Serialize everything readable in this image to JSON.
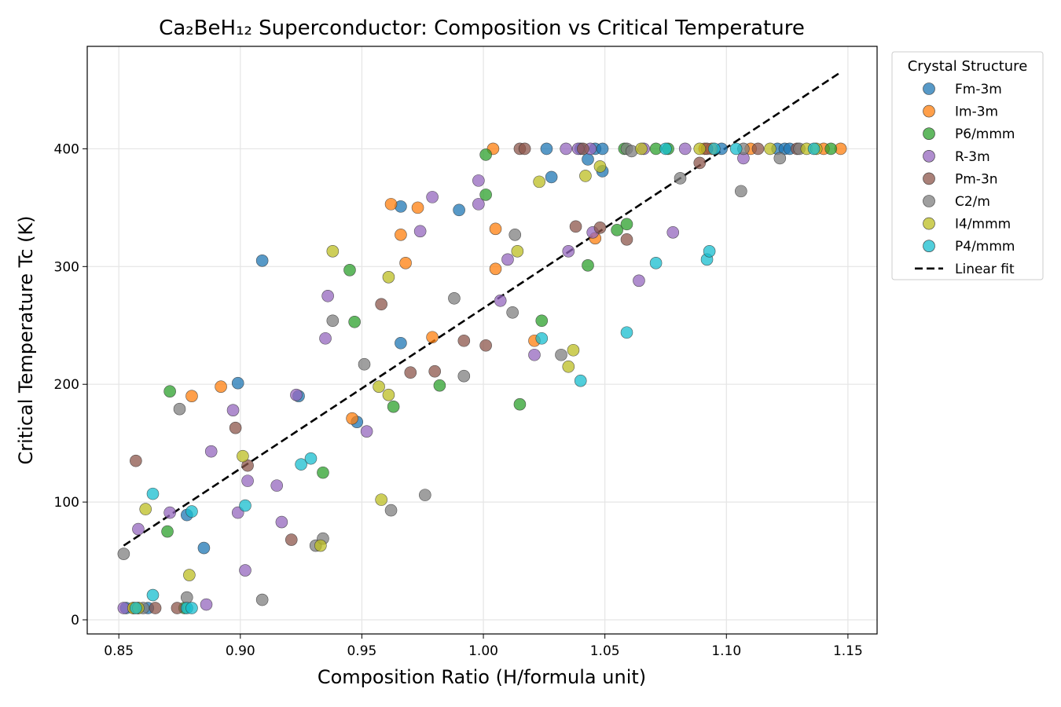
{
  "chart_data": {
    "type": "scatter",
    "title": "Ca₂BeH₁₂ Superconductor: Composition vs Critical Temperature",
    "xlabel": "Composition Ratio (H/formula unit)",
    "ylabel": "Critical Temperature Tc (K)",
    "xlim": [
      0.837,
      1.162
    ],
    "ylim": [
      -12,
      487
    ],
    "xticks": [
      0.85,
      0.9,
      0.95,
      1.0,
      1.05,
      1.1,
      1.15
    ],
    "xtick_labels": [
      "0.85",
      "0.90",
      "0.95",
      "1.00",
      "1.05",
      "1.10",
      "1.15"
    ],
    "yticks": [
      0,
      100,
      200,
      300,
      400
    ],
    "ytick_labels": [
      "0",
      "100",
      "200",
      "300",
      "400"
    ],
    "grid": true,
    "legend": {
      "title": "Crystal Structure",
      "placement": "outside-top-right"
    },
    "series": [
      {
        "name": "Fm-3m",
        "color": "#1f77b4",
        "points": [
          [
            0.909,
            305
          ],
          [
            0.899,
            201
          ],
          [
            0.924,
            190
          ],
          [
            0.948,
            168
          ],
          [
            0.885,
            61
          ],
          [
            0.878,
            89
          ],
          [
            0.966,
            351
          ],
          [
            0.966,
            235
          ],
          [
            0.99,
            348
          ],
          [
            1.028,
            376
          ],
          [
            1.049,
            381
          ],
          [
            1.043,
            391
          ],
          [
            1.026,
            400
          ],
          [
            1.04,
            400
          ],
          [
            1.046,
            400
          ],
          [
            1.049,
            400
          ],
          [
            1.098,
            400
          ],
          [
            1.121,
            400
          ],
          [
            1.124,
            400
          ],
          [
            1.126,
            400
          ],
          [
            0.853,
            10
          ],
          [
            0.858,
            10
          ],
          [
            0.862,
            10
          ]
        ]
      },
      {
        "name": "Im-3m",
        "color": "#ff7f0e",
        "points": [
          [
            1.004,
            400
          ],
          [
            0.892,
            198
          ],
          [
            0.88,
            190
          ],
          [
            0.946,
            171
          ],
          [
            0.962,
            353
          ],
          [
            0.973,
            350
          ],
          [
            0.966,
            327
          ],
          [
            0.968,
            303
          ],
          [
            0.979,
            240
          ],
          [
            1.005,
            332
          ],
          [
            1.005,
            298
          ],
          [
            1.021,
            237
          ],
          [
            1.046,
            324
          ],
          [
            1.147,
            400
          ],
          [
            1.14,
            400
          ],
          [
            1.091,
            400
          ],
          [
            1.094,
            400
          ],
          [
            1.11,
            400
          ],
          [
            0.856,
            10
          ]
        ]
      },
      {
        "name": "P6/mmm",
        "color": "#2ca02c",
        "points": [
          [
            0.871,
            194
          ],
          [
            0.87,
            75
          ],
          [
            0.934,
            125
          ],
          [
            0.945,
            297
          ],
          [
            0.947,
            253
          ],
          [
            0.963,
            181
          ],
          [
            0.982,
            199
          ],
          [
            1.001,
            395
          ],
          [
            1.001,
            361
          ],
          [
            1.015,
            183
          ],
          [
            1.024,
            254
          ],
          [
            1.043,
            301
          ],
          [
            1.055,
            331
          ],
          [
            1.059,
            336
          ],
          [
            1.058,
            400
          ],
          [
            1.071,
            400
          ],
          [
            1.076,
            400
          ],
          [
            1.143,
            400
          ],
          [
            0.877,
            10
          ]
        ]
      },
      {
        "name": "R-3m",
        "color": "#9467bd",
        "points": [
          [
            0.871,
            91
          ],
          [
            0.858,
            77
          ],
          [
            0.888,
            143
          ],
          [
            0.897,
            178
          ],
          [
            0.899,
            91
          ],
          [
            0.903,
            118
          ],
          [
            0.902,
            42
          ],
          [
            0.886,
            13
          ],
          [
            0.915,
            114
          ],
          [
            0.917,
            83
          ],
          [
            0.923,
            191
          ],
          [
            0.935,
            239
          ],
          [
            0.936,
            275
          ],
          [
            0.952,
            160
          ],
          [
            0.974,
            330
          ],
          [
            0.979,
            359
          ],
          [
            0.998,
            373
          ],
          [
            0.998,
            353
          ],
          [
            1.007,
            271
          ],
          [
            1.01,
            306
          ],
          [
            1.021,
            225
          ],
          [
            1.035,
            313
          ],
          [
            1.045,
            329
          ],
          [
            1.064,
            288
          ],
          [
            1.078,
            329
          ],
          [
            1.107,
            392
          ],
          [
            1.034,
            400
          ],
          [
            1.039,
            400
          ],
          [
            1.044,
            400
          ],
          [
            1.066,
            400
          ],
          [
            1.083,
            400
          ],
          [
            0.852,
            10
          ]
        ]
      },
      {
        "name": "Pm-3n",
        "color": "#8c564b",
        "points": [
          [
            0.857,
            135
          ],
          [
            0.898,
            163
          ],
          [
            0.903,
            131
          ],
          [
            0.921,
            68
          ],
          [
            0.958,
            268
          ],
          [
            0.97,
            210
          ],
          [
            0.98,
            211
          ],
          [
            0.992,
            237
          ],
          [
            1.001,
            233
          ],
          [
            1.038,
            334
          ],
          [
            1.048,
            333
          ],
          [
            1.059,
            323
          ],
          [
            1.089,
            388
          ],
          [
            1.015,
            400
          ],
          [
            1.017,
            400
          ],
          [
            1.041,
            400
          ],
          [
            1.092,
            400
          ],
          [
            1.113,
            400
          ],
          [
            1.129,
            400
          ],
          [
            0.865,
            10
          ],
          [
            0.874,
            10
          ]
        ]
      },
      {
        "name": "C2/m",
        "color": "#7f7f7f",
        "points": [
          [
            0.852,
            56
          ],
          [
            0.875,
            179
          ],
          [
            0.878,
            19
          ],
          [
            0.909,
            17
          ],
          [
            0.931,
            63
          ],
          [
            0.934,
            69
          ],
          [
            0.938,
            254
          ],
          [
            0.951,
            217
          ],
          [
            0.962,
            93
          ],
          [
            0.976,
            106
          ],
          [
            0.988,
            273
          ],
          [
            0.992,
            207
          ],
          [
            1.013,
            327
          ],
          [
            1.012,
            261
          ],
          [
            1.032,
            225
          ],
          [
            1.081,
            375
          ],
          [
            1.106,
            364
          ],
          [
            1.122,
            392
          ],
          [
            1.059,
            400
          ],
          [
            1.061,
            398
          ],
          [
            1.107,
            400
          ],
          [
            1.13,
            400
          ],
          [
            0.86,
            10
          ]
        ]
      },
      {
        "name": "I4/mmm",
        "color": "#bcbd22",
        "points": [
          [
            0.861,
            94
          ],
          [
            0.879,
            38
          ],
          [
            0.901,
            139
          ],
          [
            0.933,
            63
          ],
          [
            0.938,
            313
          ],
          [
            0.958,
            102
          ],
          [
            0.957,
            198
          ],
          [
            0.961,
            191
          ],
          [
            0.961,
            291
          ],
          [
            1.014,
            313
          ],
          [
            1.023,
            372
          ],
          [
            1.035,
            215
          ],
          [
            1.037,
            229
          ],
          [
            1.042,
            377
          ],
          [
            1.048,
            385
          ],
          [
            1.065,
            400
          ],
          [
            1.089,
            400
          ],
          [
            1.118,
            400
          ],
          [
            1.133,
            400
          ],
          [
            1.137,
            400
          ],
          [
            0.856,
            10
          ],
          [
            0.858,
            10
          ]
        ]
      },
      {
        "name": "P4/mmm",
        "color": "#17becf",
        "points": [
          [
            0.864,
            107
          ],
          [
            0.864,
            21
          ],
          [
            0.88,
            92
          ],
          [
            0.902,
            97
          ],
          [
            0.925,
            132
          ],
          [
            0.929,
            137
          ],
          [
            1.024,
            239
          ],
          [
            1.04,
            203
          ],
          [
            1.059,
            244
          ],
          [
            1.071,
            303
          ],
          [
            1.092,
            306
          ],
          [
            1.093,
            313
          ],
          [
            1.075,
            400
          ],
          [
            1.095,
            400
          ],
          [
            1.104,
            400
          ],
          [
            1.136,
            400
          ],
          [
            0.857,
            10
          ],
          [
            0.878,
            10
          ],
          [
            0.88,
            10
          ]
        ]
      }
    ],
    "fit": {
      "name": "Linear fit",
      "x": [
        0.852,
        1.147
      ],
      "y": [
        63,
        465
      ],
      "color": "#000000",
      "style": "dashed"
    }
  }
}
